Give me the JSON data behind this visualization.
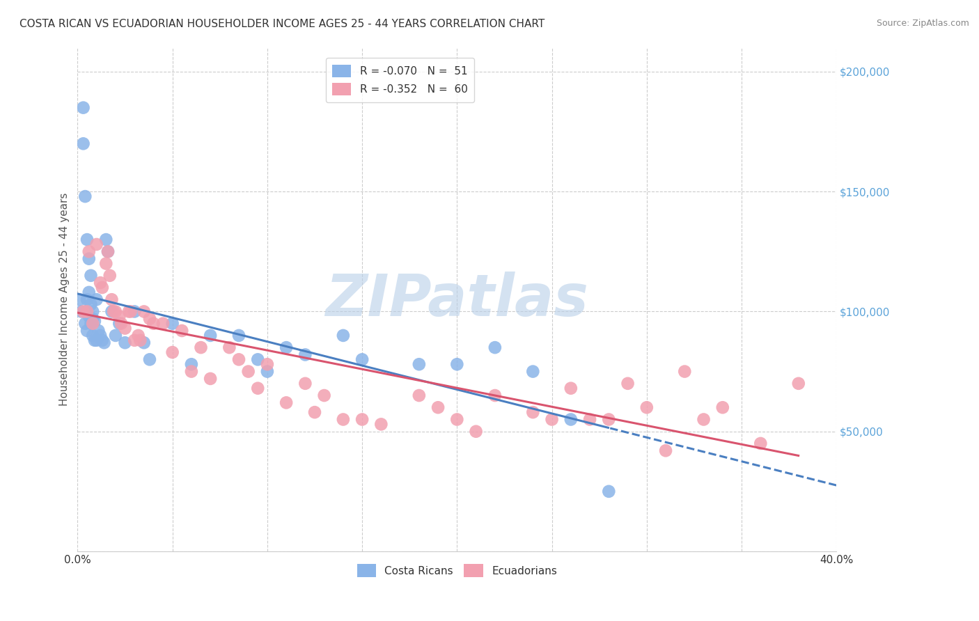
{
  "title": "COSTA RICAN VS ECUADORIAN HOUSEHOLDER INCOME AGES 25 - 44 YEARS CORRELATION CHART",
  "source": "Source: ZipAtlas.com",
  "ylabel": "Householder Income Ages 25 - 44 years",
  "xlim": [
    0.0,
    0.4
  ],
  "ylim": [
    0,
    210000
  ],
  "yticks": [
    0,
    50000,
    100000,
    150000,
    200000
  ],
  "ytick_labels": [
    "",
    "$50,000",
    "$100,000",
    "$150,000",
    "$200,000"
  ],
  "xticks": [
    0.0,
    0.05,
    0.1,
    0.15,
    0.2,
    0.25,
    0.3,
    0.35,
    0.4
  ],
  "xtick_labels": [
    "0.0%",
    "",
    "",
    "",
    "",
    "",
    "",
    "",
    "40.0%"
  ],
  "costa_rican_color": "#8ab4e8",
  "ecuadorian_color": "#f2a0b0",
  "regression_blue": "#4a7fc1",
  "regression_pink": "#d9546e",
  "watermark": "ZIPatlas",
  "watermark_color": "#b8cfe8",
  "background_color": "#ffffff",
  "grid_color": "#cccccc",
  "title_color": "#333333",
  "source_color": "#888888",
  "ylabel_color": "#555555",
  "right_tick_color": "#5ba3d9",
  "costa_ricans_x": [
    0.001,
    0.002,
    0.003,
    0.003,
    0.004,
    0.004,
    0.005,
    0.005,
    0.005,
    0.006,
    0.006,
    0.006,
    0.007,
    0.007,
    0.007,
    0.008,
    0.008,
    0.008,
    0.009,
    0.009,
    0.01,
    0.01,
    0.011,
    0.012,
    0.013,
    0.014,
    0.015,
    0.016,
    0.018,
    0.02,
    0.022,
    0.025,
    0.03,
    0.035,
    0.038,
    0.05,
    0.06,
    0.07,
    0.085,
    0.095,
    0.1,
    0.11,
    0.12,
    0.14,
    0.15,
    0.18,
    0.2,
    0.22,
    0.24,
    0.26,
    0.28
  ],
  "costa_ricans_y": [
    105000,
    100000,
    185000,
    170000,
    148000,
    95000,
    130000,
    105000,
    92000,
    122000,
    108000,
    98000,
    115000,
    103000,
    95000,
    100000,
    97000,
    90000,
    96000,
    88000,
    105000,
    88000,
    92000,
    90000,
    88000,
    87000,
    130000,
    125000,
    100000,
    90000,
    95000,
    87000,
    100000,
    87000,
    80000,
    95000,
    78000,
    90000,
    90000,
    80000,
    75000,
    85000,
    82000,
    90000,
    80000,
    78000,
    78000,
    85000,
    75000,
    55000,
    25000
  ],
  "ecuadorians_x": [
    0.003,
    0.005,
    0.006,
    0.008,
    0.01,
    0.012,
    0.013,
    0.015,
    0.016,
    0.017,
    0.018,
    0.019,
    0.02,
    0.022,
    0.023,
    0.025,
    0.027,
    0.028,
    0.03,
    0.032,
    0.033,
    0.035,
    0.038,
    0.04,
    0.045,
    0.05,
    0.055,
    0.06,
    0.065,
    0.07,
    0.08,
    0.085,
    0.09,
    0.095,
    0.1,
    0.11,
    0.12,
    0.125,
    0.13,
    0.14,
    0.15,
    0.16,
    0.18,
    0.19,
    0.2,
    0.21,
    0.22,
    0.24,
    0.25,
    0.26,
    0.27,
    0.28,
    0.29,
    0.3,
    0.31,
    0.32,
    0.33,
    0.34,
    0.36,
    0.38
  ],
  "ecuadorians_y": [
    100000,
    100000,
    125000,
    95000,
    128000,
    112000,
    110000,
    120000,
    125000,
    115000,
    105000,
    100000,
    100000,
    98000,
    95000,
    93000,
    100000,
    100000,
    88000,
    90000,
    88000,
    100000,
    97000,
    95000,
    95000,
    83000,
    92000,
    75000,
    85000,
    72000,
    85000,
    80000,
    75000,
    68000,
    78000,
    62000,
    70000,
    58000,
    65000,
    55000,
    55000,
    53000,
    65000,
    60000,
    55000,
    50000,
    65000,
    58000,
    55000,
    68000,
    55000,
    55000,
    70000,
    60000,
    42000,
    75000,
    55000,
    60000,
    45000,
    70000
  ]
}
